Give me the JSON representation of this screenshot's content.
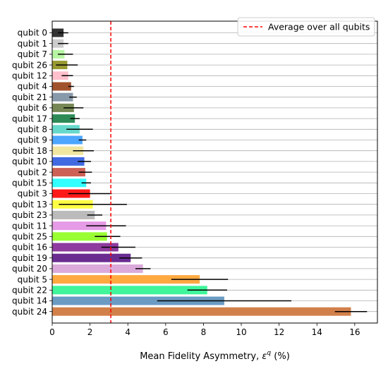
{
  "chart_data": {
    "type": "bar",
    "orientation": "horizontal",
    "xlabel_prefix": "Mean Fidelity Asymmetry, ",
    "xlabel_symbol": "ε",
    "xlabel_superscript": "q",
    "xlabel_suffix": " (%)",
    "ylabel": "",
    "xlim": [
      0,
      17.2
    ],
    "xticks": [
      0,
      2,
      4,
      6,
      8,
      10,
      12,
      14,
      16
    ],
    "grid": "horizontal",
    "legend_position": "top-right",
    "reference_line": {
      "value": 3.1,
      "label": "Average over all qubits",
      "color": "#ff0000",
      "style": "dashed"
    },
    "bars": [
      {
        "label": "qubit 0",
        "value": 0.6,
        "err_low": 0.3,
        "err_high": 0.85,
        "color": "#333333"
      },
      {
        "label": "qubit 1",
        "value": 0.6,
        "err_low": 0.3,
        "err_high": 0.85,
        "color": "#cccccc"
      },
      {
        "label": "qubit 7",
        "value": 0.65,
        "err_low": 0.3,
        "err_high": 1.1,
        "color": "#b6f5a3"
      },
      {
        "label": "qubit 26",
        "value": 0.8,
        "err_low": 0.2,
        "err_high": 1.35,
        "color": "#999933"
      },
      {
        "label": "qubit 12",
        "value": 0.85,
        "err_low": 0.5,
        "err_high": 1.1,
        "color": "#ffc0cb"
      },
      {
        "label": "qubit 4",
        "value": 1.0,
        "err_low": 0.85,
        "err_high": 1.15,
        "color": "#a0522d"
      },
      {
        "label": "qubit 21",
        "value": 1.1,
        "err_low": 0.9,
        "err_high": 1.3,
        "color": "#8899aa"
      },
      {
        "label": "qubit 6",
        "value": 1.15,
        "err_low": 0.6,
        "err_high": 1.65,
        "color": "#778855"
      },
      {
        "label": "qubit 17",
        "value": 1.2,
        "err_low": 0.95,
        "err_high": 1.45,
        "color": "#2e8b57"
      },
      {
        "label": "qubit 8",
        "value": 1.45,
        "err_low": 0.75,
        "err_high": 2.15,
        "color": "#66d9cc"
      },
      {
        "label": "qubit 9",
        "value": 1.6,
        "err_low": 1.4,
        "err_high": 1.8,
        "color": "#4da6ff"
      },
      {
        "label": "qubit 18",
        "value": 1.65,
        "err_low": 1.1,
        "err_high": 2.2,
        "color": "#f0e6a0"
      },
      {
        "label": "qubit 10",
        "value": 1.7,
        "err_low": 1.35,
        "err_high": 2.05,
        "color": "#4169e1"
      },
      {
        "label": "qubit 2",
        "value": 1.75,
        "err_low": 1.4,
        "err_high": 2.1,
        "color": "#cd6155"
      },
      {
        "label": "qubit 15",
        "value": 1.8,
        "err_low": 1.55,
        "err_high": 2.05,
        "color": "#33ffff"
      },
      {
        "label": "qubit 3",
        "value": 2.0,
        "err_low": 0.85,
        "err_high": 3.15,
        "color": "#ff1a1a"
      },
      {
        "label": "qubit 13",
        "value": 2.15,
        "err_low": 0.35,
        "err_high": 3.95,
        "color": "#ffff44"
      },
      {
        "label": "qubit 23",
        "value": 2.25,
        "err_low": 1.85,
        "err_high": 2.65,
        "color": "#bbbbbb"
      },
      {
        "label": "qubit 11",
        "value": 2.85,
        "err_low": 1.8,
        "err_high": 3.9,
        "color": "#e59be5"
      },
      {
        "label": "qubit 25",
        "value": 2.9,
        "err_low": 2.25,
        "err_high": 3.6,
        "color": "#99ff33"
      },
      {
        "label": "qubit 16",
        "value": 3.5,
        "err_low": 2.6,
        "err_high": 4.4,
        "color": "#8e3a9e"
      },
      {
        "label": "qubit 19",
        "value": 4.15,
        "err_low": 3.55,
        "err_high": 4.75,
        "color": "#6a2c91"
      },
      {
        "label": "qubit 20",
        "value": 4.8,
        "err_low": 4.4,
        "err_high": 5.2,
        "color": "#dbaadb"
      },
      {
        "label": "qubit 5",
        "value": 7.8,
        "err_low": 6.3,
        "err_high": 9.3,
        "color": "#ffa940"
      },
      {
        "label": "qubit 22",
        "value": 8.2,
        "err_low": 7.15,
        "err_high": 9.25,
        "color": "#40f59a"
      },
      {
        "label": "qubit 14",
        "value": 9.1,
        "err_low": 5.55,
        "err_high": 12.65,
        "color": "#6b9bc3"
      },
      {
        "label": "qubit 24",
        "value": 15.8,
        "err_low": 14.95,
        "err_high": 16.65,
        "color": "#d2804a"
      }
    ]
  }
}
